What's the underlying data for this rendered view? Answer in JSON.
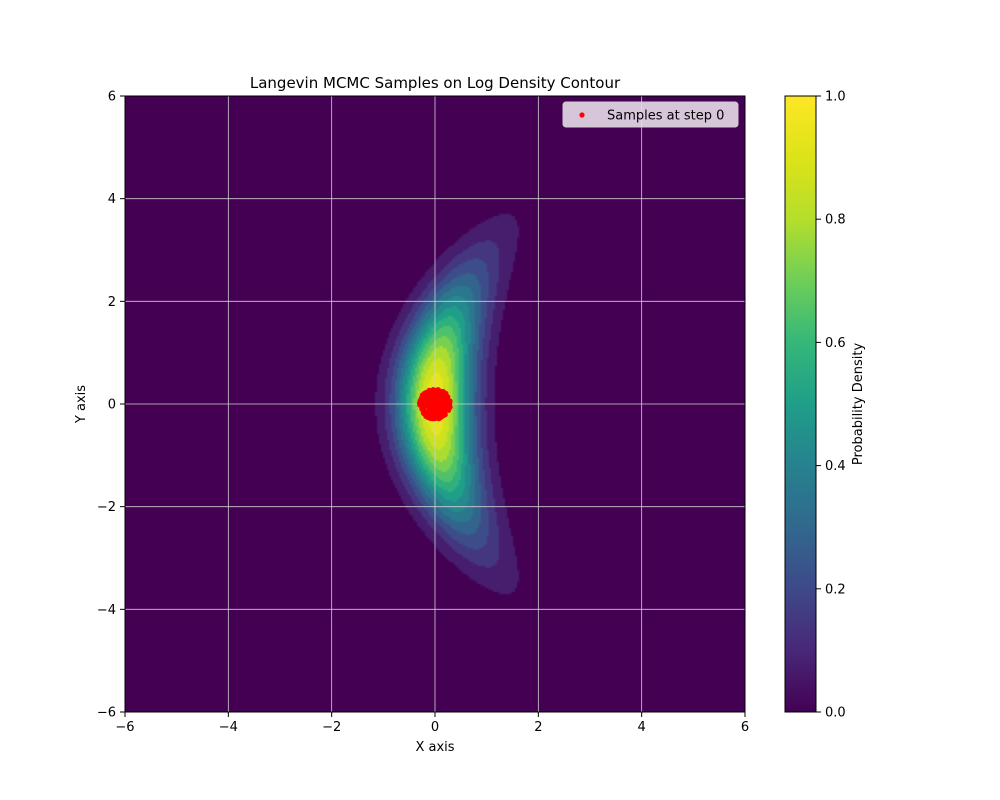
{
  "chart_data": {
    "type": "heatmap",
    "title": "Langevin MCMC Samples on Log Density Contour",
    "xlabel": "X axis",
    "ylabel": "Y axis",
    "xlim": [
      -6,
      6
    ],
    "ylim": [
      -6,
      6
    ],
    "xticks": [
      -6,
      -4,
      -2,
      0,
      2,
      4,
      6
    ],
    "yticks": [
      -6,
      -4,
      -2,
      0,
      2,
      4,
      6
    ],
    "x_tick_labels": [
      "−6",
      "−4",
      "−2",
      "0",
      "2",
      "4",
      "6"
    ],
    "y_tick_labels": [
      "−6",
      "−4",
      "−2",
      "0",
      "2",
      "4",
      "6"
    ],
    "grid": true,
    "colormap": "viridis",
    "colorbar": {
      "label": "Probability Density",
      "range": [
        0.0,
        1.0
      ],
      "ticks": [
        0.0,
        0.2,
        0.4,
        0.6,
        0.8,
        1.0
      ],
      "tick_labels": [
        "0.0",
        "0.2",
        "0.4",
        "0.6",
        "0.8",
        "1.0"
      ]
    },
    "density_shape": "banana-shaped density peaking at (0, 0), curving toward positive x at large |y|",
    "scatter": {
      "label": "Samples at step 0",
      "color": "#ff0000",
      "center": [
        0.0,
        0.0
      ],
      "spread": 0.15
    },
    "legend_position": "top-right"
  }
}
